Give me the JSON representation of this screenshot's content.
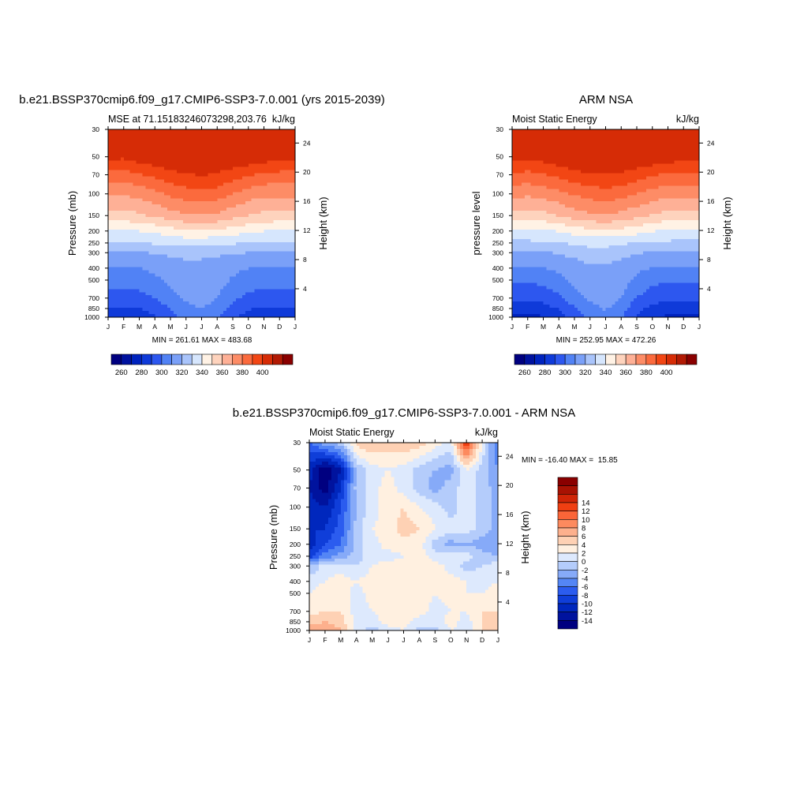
{
  "colors": {
    "mse_palette": [
      "#000080",
      "#00129f",
      "#0023be",
      "#0f3ad9",
      "#2d57ef",
      "#5182f5",
      "#7aa0f8",
      "#a9c4fb",
      "#d6e6fd",
      "#fff2e5",
      "#fed3bd",
      "#feb096",
      "#fd8c66",
      "#fb6a3d",
      "#f24614",
      "#d62c06",
      "#b21a04",
      "#8a0000"
    ],
    "diff_palette": [
      "#000080",
      "#00139e",
      "#0027bd",
      "#0f3ed9",
      "#2b5cef",
      "#5486f5",
      "#86aaf8",
      "#b4ccfb",
      "#dde9fd",
      "#fff0e0",
      "#fed1b4",
      "#fdb08d",
      "#fd8a5e",
      "#fb6538",
      "#f03f12",
      "#d02507",
      "#a81203",
      "#8a0000"
    ]
  },
  "chart_data": [
    {
      "type": "contour",
      "id": "model",
      "title": "b.e21.BSSP370cmip6.f09_g17.CMIP6-SSP3-7.0.001 (yrs 2015-2039)",
      "left_label": "MSE at 71.15183246073298,203.76",
      "right_label": "kJ/kg",
      "ylabel": "Pressure (mb)",
      "y2label": "Height (km)",
      "stats": "MIN = 261.61 MAX = 483.68",
      "x_ticks": [
        "J",
        "F",
        "M",
        "A",
        "M",
        "J",
        "J",
        "A",
        "S",
        "O",
        "N",
        "D",
        "J"
      ],
      "y_ticks": [
        "30",
        "50",
        "70",
        "100",
        "150",
        "200",
        "250",
        "300",
        "400",
        "500",
        "700",
        "850",
        "1000"
      ],
      "y_tick_values": [
        30,
        50,
        70,
        100,
        150,
        200,
        250,
        300,
        400,
        500,
        700,
        850,
        1000
      ],
      "height_ticks": [
        "24",
        "20",
        "16",
        "12",
        "8",
        "4"
      ],
      "height_tick_values": [
        24,
        20,
        16,
        12,
        8,
        4
      ],
      "levels": [
        260,
        270,
        280,
        290,
        300,
        310,
        320,
        330,
        340,
        350,
        360,
        370,
        380,
        390,
        400
      ],
      "colorbar_labels": [
        "260",
        "280",
        "300",
        "320",
        "340",
        "360",
        "380",
        "400"
      ],
      "colorbar_label_values": [
        260,
        280,
        300,
        320,
        340,
        360,
        380,
        400
      ],
      "months_x": [
        0,
        1,
        2,
        3,
        4,
        5,
        6,
        7,
        8,
        9,
        10,
        11,
        12
      ],
      "pressure_levels": [
        30,
        50,
        70,
        100,
        150,
        200,
        250,
        300,
        400,
        500,
        700,
        850,
        1000
      ],
      "values": [
        [
          420,
          420,
          420,
          420,
          420,
          420,
          420,
          420,
          420,
          420,
          420,
          420,
          420
        ],
        [
          403,
          402,
          406,
          408,
          410,
          411,
          412,
          411,
          409,
          408,
          406,
          404,
          403
        ],
        [
          387,
          386,
          389,
          393,
          397,
          399,
          401,
          399,
          395,
          391,
          388,
          387,
          387
        ],
        [
          372,
          371,
          373,
          377,
          382,
          385,
          387,
          385,
          380,
          375,
          372,
          372,
          372
        ],
        [
          357,
          356,
          358,
          362,
          366,
          369,
          370,
          368,
          364,
          360,
          357,
          357,
          357
        ],
        [
          339,
          339,
          340,
          342,
          345,
          348,
          349,
          348,
          345,
          342,
          340,
          339,
          339
        ],
        [
          329,
          329,
          330,
          331,
          332,
          334,
          333,
          332,
          331,
          329,
          329,
          329,
          329
        ],
        [
          318,
          318,
          319,
          321,
          322,
          324,
          323,
          322,
          321,
          320,
          318,
          318,
          318
        ],
        [
          309,
          309,
          310,
          312,
          314,
          316,
          316,
          314,
          312,
          310,
          309,
          309,
          309
        ],
        [
          304,
          304,
          305,
          308,
          312,
          316,
          317,
          314,
          309,
          306,
          304,
          304,
          304
        ],
        [
          295,
          295,
          296,
          300,
          306,
          312,
          314,
          310,
          302,
          297,
          295,
          295,
          295
        ],
        [
          289,
          289,
          290,
          294,
          300,
          307,
          310,
          306,
          297,
          291,
          289,
          289,
          289
        ],
        [
          283,
          283,
          284,
          289,
          296,
          303,
          307,
          302,
          292,
          286,
          283,
          283,
          283
        ]
      ]
    },
    {
      "type": "contour",
      "id": "obs",
      "title": "ARM NSA",
      "left_label": "Moist Static Energy",
      "right_label": "kJ/kg",
      "ylabel": "pressure level",
      "y2label": "Height (km)",
      "stats": "MIN = 252.95 MAX = 472.26",
      "x_ticks": [
        "J",
        "F",
        "M",
        "A",
        "M",
        "J",
        "J",
        "A",
        "S",
        "O",
        "N",
        "D",
        "J"
      ],
      "y_ticks": [
        "30",
        "50",
        "70",
        "100",
        "150",
        "200",
        "250",
        "300",
        "400",
        "500",
        "700",
        "850",
        "1000"
      ],
      "y_tick_values": [
        30,
        50,
        70,
        100,
        150,
        200,
        250,
        300,
        400,
        500,
        700,
        850,
        1000
      ],
      "height_ticks": [
        "24",
        "20",
        "16",
        "12",
        "8",
        "4"
      ],
      "height_tick_values": [
        24,
        20,
        16,
        12,
        8,
        4
      ],
      "levels": [
        260,
        270,
        280,
        290,
        300,
        310,
        320,
        330,
        340,
        350,
        360,
        370,
        380,
        390,
        400
      ],
      "colorbar_labels": [
        "260",
        "280",
        "300",
        "320",
        "340",
        "360",
        "380",
        "400"
      ],
      "colorbar_label_values": [
        260,
        280,
        300,
        320,
        340,
        360,
        380,
        400
      ],
      "months_x": [
        0,
        1,
        2,
        3,
        4,
        5,
        6,
        7,
        8,
        9,
        10,
        11,
        12
      ],
      "pressure_levels": [
        30,
        50,
        70,
        100,
        150,
        200,
        250,
        300,
        400,
        500,
        700,
        850,
        1000
      ],
      "values": [
        [
          420,
          420,
          420,
          420,
          420,
          420,
          420,
          420,
          420,
          420,
          420,
          420,
          420
        ],
        [
          404,
          403,
          405,
          408,
          410,
          411,
          412,
          411,
          409,
          408,
          406,
          404,
          404
        ],
        [
          388,
          387,
          389,
          393,
          397,
          399,
          400,
          399,
          395,
          391,
          389,
          388,
          388
        ],
        [
          373,
          372,
          374,
          377,
          381,
          384,
          386,
          384,
          380,
          376,
          373,
          373,
          373
        ],
        [
          356,
          355,
          357,
          361,
          365,
          368,
          369,
          367,
          363,
          359,
          356,
          356,
          356
        ],
        [
          337,
          337,
          338,
          341,
          344,
          347,
          348,
          347,
          344,
          341,
          338,
          337,
          337
        ],
        [
          328,
          328,
          329,
          330,
          331,
          333,
          333,
          331,
          330,
          328,
          328,
          328,
          328
        ],
        [
          318,
          318,
          319,
          321,
          323,
          326,
          326,
          324,
          321,
          319,
          318,
          318,
          318
        ],
        [
          309,
          309,
          310,
          312,
          315,
          318,
          318,
          315,
          312,
          310,
          309,
          309,
          309
        ],
        [
          301,
          301,
          303,
          307,
          312,
          317,
          318,
          314,
          308,
          303,
          301,
          301,
          301
        ],
        [
          292,
          292,
          293,
          298,
          306,
          312,
          315,
          310,
          300,
          294,
          292,
          292,
          292
        ],
        [
          285,
          285,
          286,
          291,
          299,
          307,
          311,
          305,
          293,
          287,
          285,
          285,
          285
        ],
        [
          278,
          278,
          279,
          285,
          294,
          303,
          307,
          301,
          288,
          281,
          278,
          278,
          278
        ]
      ]
    },
    {
      "type": "contour",
      "id": "diff",
      "title": "b.e21.BSSP370cmip6.f09_g17.CMIP6-SSP3-7.0.001 - ARM NSA",
      "left_label": "Moist Static Energy",
      "right_label": "kJ/kg",
      "ylabel": "Pressure (mb)",
      "y2label": "Height (km)",
      "stats": "MIN = -16.40 MAX =  15.85",
      "x_ticks": [
        "J",
        "F",
        "M",
        "A",
        "M",
        "J",
        "J",
        "A",
        "S",
        "O",
        "N",
        "D",
        "J"
      ],
      "y_ticks": [
        "30",
        "50",
        "70",
        "100",
        "150",
        "200",
        "250",
        "300",
        "400",
        "500",
        "700",
        "850",
        "1000"
      ],
      "y_tick_values": [
        30,
        50,
        70,
        100,
        150,
        200,
        250,
        300,
        400,
        500,
        700,
        850,
        1000
      ],
      "height_ticks": [
        "24",
        "20",
        "16",
        "12",
        "8",
        "4"
      ],
      "height_tick_values": [
        24,
        20,
        16,
        12,
        8,
        4
      ],
      "levels": [
        -14,
        -12,
        -10,
        -8,
        -6,
        -4,
        -2,
        0,
        2,
        4,
        6,
        8,
        10,
        12,
        14
      ],
      "colorbar_labels": [
        "14",
        "12",
        "10",
        "8",
        "6",
        "4",
        "2",
        "0",
        "-2",
        "-4",
        "-6",
        "-8",
        "-10",
        "-12",
        "-14"
      ],
      "colorbar_label_values": [
        14,
        12,
        10,
        8,
        6,
        4,
        2,
        0,
        -2,
        -4,
        -6,
        -8,
        -10,
        -12,
        -14
      ],
      "months_x": [
        0,
        1,
        2,
        3,
        4,
        5,
        6,
        7,
        8,
        9,
        10,
        11,
        12
      ],
      "pressure_levels": [
        30,
        50,
        70,
        100,
        150,
        200,
        250,
        300,
        400,
        500,
        700,
        850,
        1000
      ],
      "values": [
        [
          -6,
          -3,
          -1,
          5,
          6,
          5,
          6,
          5,
          3,
          1,
          14,
          2,
          -6
        ],
        [
          -11,
          -16,
          -12,
          -2,
          1,
          2,
          1,
          -1,
          -2,
          -3,
          2,
          -1,
          -4
        ],
        [
          -12,
          -15,
          -10,
          -1,
          1,
          3,
          1,
          -1,
          -3,
          -1,
          1,
          -1,
          -3
        ],
        [
          -11,
          -12,
          -8,
          -2,
          1,
          3,
          4,
          2,
          1,
          -1,
          1,
          -1,
          -3
        ],
        [
          -10,
          -10,
          -7,
          -1,
          2,
          3,
          5,
          4,
          2,
          1,
          1,
          -1,
          -3
        ],
        [
          -11,
          -8,
          -6,
          -1,
          1,
          3,
          3,
          3,
          -1,
          -3,
          -2,
          -3,
          -4
        ],
        [
          -9,
          -5,
          -3,
          -1,
          1,
          1,
          2,
          3,
          1,
          1,
          1,
          -1,
          -2
        ],
        [
          -2,
          1,
          1,
          0,
          2,
          3,
          3,
          3,
          3,
          1,
          -1,
          0,
          1
        ],
        [
          1,
          2,
          3,
          2,
          3,
          4,
          4,
          4,
          3,
          3,
          2,
          1,
          2
        ],
        [
          2,
          3,
          3,
          1,
          3,
          4,
          3,
          3,
          2,
          3,
          2,
          2,
          3
        ],
        [
          3,
          4,
          4,
          1,
          2,
          3,
          3,
          3,
          1,
          2,
          2,
          4,
          4
        ],
        [
          5,
          6,
          5,
          1,
          1,
          3,
          3,
          1,
          1,
          3,
          1,
          4,
          5
        ],
        [
          7,
          8,
          6,
          1,
          -1,
          1,
          2,
          -1,
          -1,
          2,
          1,
          4,
          6
        ]
      ]
    }
  ]
}
